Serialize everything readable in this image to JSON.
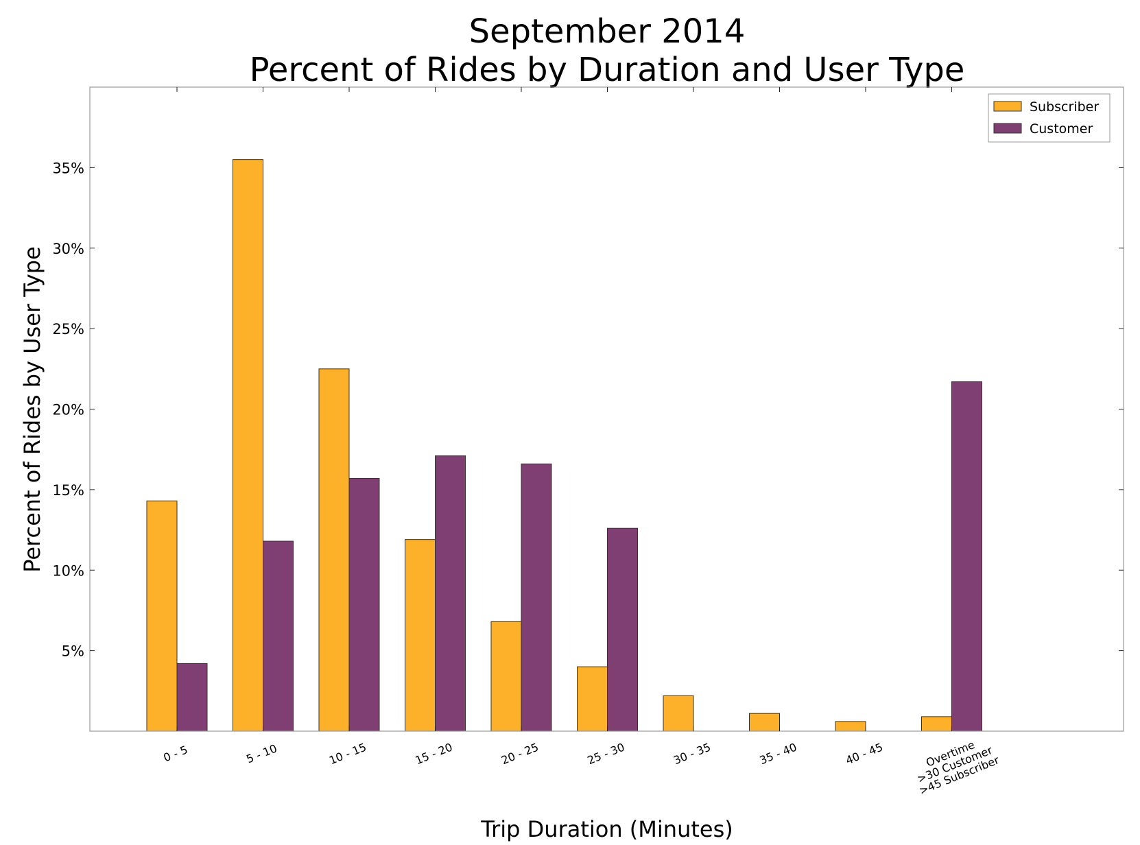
{
  "chart_data": {
    "type": "bar",
    "title": [
      "September 2014",
      "Percent of Rides by Duration and User Type"
    ],
    "xlabel": "Trip Duration (Minutes)",
    "ylabel": "Percent of Rides by User Type",
    "categories": [
      "0 - 5",
      "5 - 10",
      "10 - 15",
      "15 - 20",
      "20 - 25",
      "25 - 30",
      "30 - 35",
      "35 - 40",
      "40 - 45",
      "Overtime\n>30 Customer\n>45 Subscriber"
    ],
    "series": [
      {
        "name": "Subscriber",
        "color": "#FDB02A",
        "values": [
          14.3,
          35.5,
          22.5,
          11.9,
          6.8,
          4.0,
          2.2,
          1.1,
          0.6,
          0.9
        ]
      },
      {
        "name": "Customer",
        "color": "#7F3F72",
        "values": [
          4.2,
          11.8,
          15.7,
          17.1,
          16.6,
          12.6,
          null,
          null,
          null,
          21.7
        ]
      }
    ],
    "yticks": [
      "5%",
      "10%",
      "15%",
      "20%",
      "25%",
      "30%",
      "35%"
    ],
    "ytick_values": [
      5,
      10,
      15,
      20,
      25,
      30,
      35
    ],
    "ylim": [
      0,
      40
    ],
    "legend_position": "top-right",
    "grid": false
  }
}
